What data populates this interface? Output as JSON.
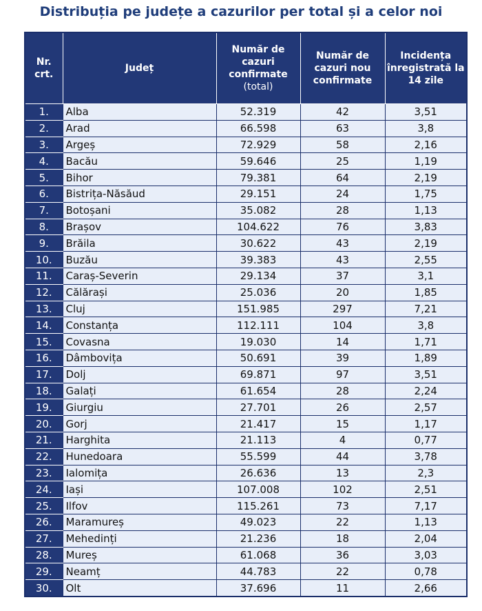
{
  "title": "Distribuția pe județe a cazurilor per total și a celor noi",
  "headers": {
    "nr": "Nr. crt.",
    "judet": "Județ",
    "total_main": "Număr de cazuri confirmate",
    "total_sub": "(total)",
    "noi": "Număr de cazuri nou confirmate",
    "incidenta": "Incidența înregistrată la 14 zile"
  },
  "rows": [
    {
      "nr": "1.",
      "judet": "Alba",
      "total": "52.319",
      "noi": "42",
      "incidenta": "3,51"
    },
    {
      "nr": "2.",
      "judet": "Arad",
      "total": "66.598",
      "noi": "63",
      "incidenta": "3,8"
    },
    {
      "nr": "3.",
      "judet": "Argeș",
      "total": "72.929",
      "noi": "58",
      "incidenta": "2,16"
    },
    {
      "nr": "4.",
      "judet": "Bacău",
      "total": "59.646",
      "noi": "25",
      "incidenta": "1,19"
    },
    {
      "nr": "5.",
      "judet": "Bihor",
      "total": "79.381",
      "noi": "64",
      "incidenta": "2,19"
    },
    {
      "nr": "6.",
      "judet": "Bistrița-Năsăud",
      "total": "29.151",
      "noi": "24",
      "incidenta": "1,75"
    },
    {
      "nr": "7.",
      "judet": "Botoșani",
      "total": "35.082",
      "noi": "28",
      "incidenta": "1,13"
    },
    {
      "nr": "8.",
      "judet": "Brașov",
      "total": "104.622",
      "noi": "76",
      "incidenta": "3,83"
    },
    {
      "nr": "9.",
      "judet": "Brăila",
      "total": "30.622",
      "noi": "43",
      "incidenta": "2,19"
    },
    {
      "nr": "10.",
      "judet": "Buzău",
      "total": "39.383",
      "noi": "43",
      "incidenta": "2,55"
    },
    {
      "nr": "11.",
      "judet": "Caraș-Severin",
      "total": "29.134",
      "noi": "37",
      "incidenta": "3,1"
    },
    {
      "nr": "12.",
      "judet": "Călărași",
      "total": "25.036",
      "noi": "20",
      "incidenta": "1,85"
    },
    {
      "nr": "13.",
      "judet": "Cluj",
      "total": "151.985",
      "noi": "297",
      "incidenta": "7,21"
    },
    {
      "nr": "14.",
      "judet": "Constanța",
      "total": "112.111",
      "noi": "104",
      "incidenta": "3,8"
    },
    {
      "nr": "15.",
      "judet": "Covasna",
      "total": "19.030",
      "noi": "14",
      "incidenta": "1,71"
    },
    {
      "nr": "16.",
      "judet": "Dâmbovița",
      "total": "50.691",
      "noi": "39",
      "incidenta": "1,89"
    },
    {
      "nr": "17.",
      "judet": "Dolj",
      "total": "69.871",
      "noi": "97",
      "incidenta": "3,51"
    },
    {
      "nr": "18.",
      "judet": "Galați",
      "total": "61.654",
      "noi": "28",
      "incidenta": "2,24"
    },
    {
      "nr": "19.",
      "judet": "Giurgiu",
      "total": "27.701",
      "noi": "26",
      "incidenta": "2,57"
    },
    {
      "nr": "20.",
      "judet": "Gorj",
      "total": "21.417",
      "noi": "15",
      "incidenta": "1,17"
    },
    {
      "nr": "21.",
      "judet": "Harghita",
      "total": "21.113",
      "noi": "4",
      "incidenta": "0,77"
    },
    {
      "nr": "22.",
      "judet": "Hunedoara",
      "total": "55.599",
      "noi": "44",
      "incidenta": "3,78"
    },
    {
      "nr": "23.",
      "judet": "Ialomița",
      "total": "26.636",
      "noi": "13",
      "incidenta": "2,3"
    },
    {
      "nr": "24.",
      "judet": "Iași",
      "total": "107.008",
      "noi": "102",
      "incidenta": "2,51"
    },
    {
      "nr": "25.",
      "judet": "Ilfov",
      "total": "115.261",
      "noi": "73",
      "incidenta": "7,17"
    },
    {
      "nr": "26.",
      "judet": "Maramureș",
      "total": "49.023",
      "noi": "22",
      "incidenta": "1,13"
    },
    {
      "nr": "27.",
      "judet": "Mehedinți",
      "total": "21.236",
      "noi": "18",
      "incidenta": "2,04"
    },
    {
      "nr": "28.",
      "judet": "Mureș",
      "total": "61.068",
      "noi": "36",
      "incidenta": "3,03"
    },
    {
      "nr": "29.",
      "judet": "Neamț",
      "total": "44.783",
      "noi": "22",
      "incidenta": "0,78"
    },
    {
      "nr": "30.",
      "judet": "Olt",
      "total": "37.696",
      "noi": "11",
      "incidenta": "2,66"
    }
  ],
  "colors": {
    "header_bg": "#223877",
    "cell_bg": "#e8eef9",
    "title": "#1f3d7a"
  }
}
